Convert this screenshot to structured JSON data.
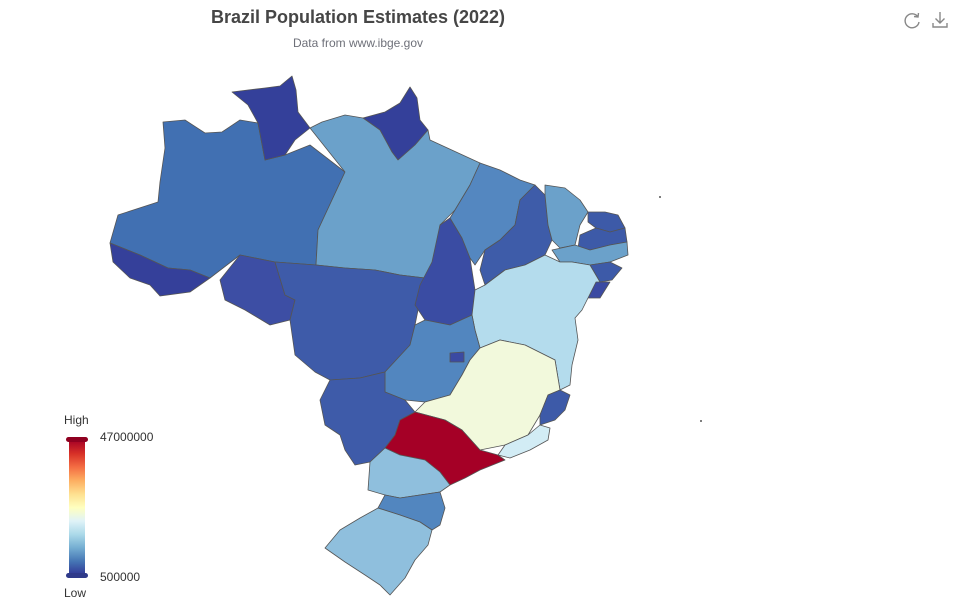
{
  "title": "Brazil Population Estimates (2022)",
  "subtitle": "Data from www.ibge.gov",
  "toolbox": {
    "restore_icon": "refresh-icon",
    "save_icon": "download-icon"
  },
  "visual_map": {
    "high_text": "High",
    "low_text": "Low",
    "max": 47000000,
    "min": 500000,
    "max_label": "47000000",
    "min_label": "500000",
    "colors": [
      "#313695",
      "#4575b4",
      "#74add1",
      "#abd9e9",
      "#e0f3f8",
      "#ffffbf",
      "#fee090",
      "#fdae61",
      "#f46d43",
      "#d73027",
      "#a50026"
    ]
  },
  "colors": {
    "border": "#555555",
    "title": "#464646",
    "subtitle": "#6e7079"
  }
}
